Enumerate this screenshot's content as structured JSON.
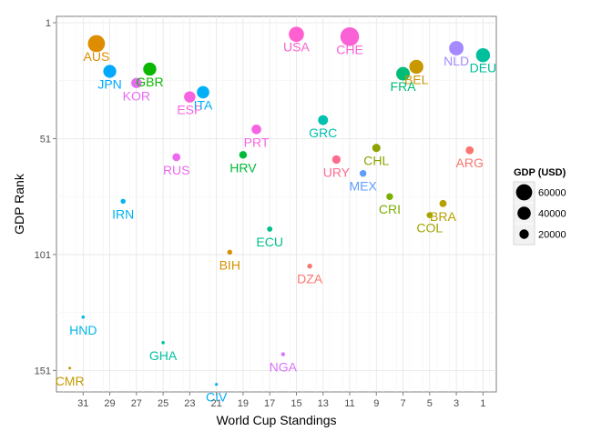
{
  "chart_data": {
    "type": "scatter",
    "xlabel": "World Cup Standings",
    "ylabel": "GDP Rank",
    "x_reversed": true,
    "y_reversed": true,
    "xlim": [
      33,
      0
    ],
    "ylim": [
      1,
      163
    ],
    "x_ticks": [
      31,
      29,
      27,
      25,
      23,
      21,
      19,
      17,
      15,
      13,
      11,
      9,
      7,
      5,
      3,
      1
    ],
    "y_ticks": [
      1,
      51,
      101,
      151
    ],
    "grid": true,
    "legend_position": "right",
    "legend": {
      "title": "GDP (USD)",
      "entries": [
        {
          "label": "60000",
          "value": 60000
        },
        {
          "label": "40000",
          "value": 40000
        },
        {
          "label": "20000",
          "value": 20000
        }
      ]
    },
    "points": [
      {
        "label": "AUS",
        "x": 30.0,
        "y": 10,
        "gdp": 67000,
        "color": "#de8c00"
      },
      {
        "label": "USA",
        "x": 15.0,
        "y": 6,
        "gdp": 53000,
        "color": "#fe61cf"
      },
      {
        "label": "CHE",
        "x": 11.0,
        "y": 7,
        "gdp": 81000,
        "color": "#fb61d7"
      },
      {
        "label": "NLD",
        "x": 3.0,
        "y": 12,
        "gdp": 48000,
        "color": "#a58aff"
      },
      {
        "label": "DEU",
        "x": 1.0,
        "y": 15,
        "gdp": 45000,
        "color": "#00bf9c"
      },
      {
        "label": "BEL",
        "x": 6.0,
        "y": 20,
        "gdp": 45000,
        "color": "#c99800"
      },
      {
        "label": "FRA",
        "x": 7.0,
        "y": 23,
        "gdp": 42000,
        "color": "#00bc76"
      },
      {
        "label": "JPN",
        "x": 29.0,
        "y": 22,
        "gdp": 38000,
        "color": "#00a9ff"
      },
      {
        "label": "GBR",
        "x": 26.0,
        "y": 21,
        "gdp": 39000,
        "color": "#0cb702"
      },
      {
        "label": "KOR",
        "x": 27.0,
        "y": 27,
        "gdp": 24000,
        "color": "#e76bf3"
      },
      {
        "label": "ESP",
        "x": 23.0,
        "y": 33,
        "gdp": 29000,
        "color": "#f863df"
      },
      {
        "label": "ITA",
        "x": 22.0,
        "y": 31,
        "gdp": 35000,
        "color": "#00b0f6"
      },
      {
        "label": "GRC",
        "x": 13.0,
        "y": 43,
        "gdp": 22000,
        "color": "#00c0af"
      },
      {
        "label": "PRT",
        "x": 18.0,
        "y": 47,
        "gdp": 21000,
        "color": "#f565e3"
      },
      {
        "label": "CHL",
        "x": 9.0,
        "y": 55,
        "gdp": 15000,
        "color": "#8ea300"
      },
      {
        "label": "ARG",
        "x": 2.0,
        "y": 56,
        "gdp": 14000,
        "color": "#f8766d"
      },
      {
        "label": "HRV",
        "x": 19.0,
        "y": 58,
        "gdp": 13000,
        "color": "#00ba38"
      },
      {
        "label": "RUS",
        "x": 24.0,
        "y": 59,
        "gdp": 14000,
        "color": "#ec69ef"
      },
      {
        "label": "URY",
        "x": 12.0,
        "y": 60,
        "gdp": 16000,
        "color": "#ff6c91"
      },
      {
        "label": "MEX",
        "x": 10.0,
        "y": 66,
        "gdp": 10000,
        "color": "#619cff"
      },
      {
        "label": "CRI",
        "x": 8.0,
        "y": 76,
        "gdp": 10000,
        "color": "#7cae00"
      },
      {
        "label": "BRA",
        "x": 4.0,
        "y": 79,
        "gdp": 11000,
        "color": "#b79f00"
      },
      {
        "label": "COL",
        "x": 5.0,
        "y": 84,
        "gdp": 8000,
        "color": "#a3a500"
      },
      {
        "label": "IRN",
        "x": 28.0,
        "y": 78,
        "gdp": 5000,
        "color": "#00b4ef"
      },
      {
        "label": "ECU",
        "x": 17.0,
        "y": 90,
        "gdp": 6000,
        "color": "#00c08b"
      },
      {
        "label": "BIH",
        "x": 20.0,
        "y": 100,
        "gdp": 5000,
        "color": "#d89000"
      },
      {
        "label": "DZA",
        "x": 14.0,
        "y": 106,
        "gdp": 5000,
        "color": "#f8766d"
      },
      {
        "label": "HND",
        "x": 31.0,
        "y": 128,
        "gdp": 2000,
        "color": "#00b8e7"
      },
      {
        "label": "GHA",
        "x": 25.0,
        "y": 139,
        "gdp": 2000,
        "color": "#00c1a3"
      },
      {
        "label": "NGA",
        "x": 16.0,
        "y": 144,
        "gdp": 3000,
        "color": "#db72fb"
      },
      {
        "label": "CMR",
        "x": 32.0,
        "y": 150,
        "gdp": 1300,
        "color": "#c49a00"
      },
      {
        "label": "CIV",
        "x": 21.0,
        "y": 157,
        "gdp": 1500,
        "color": "#00aef9"
      }
    ]
  }
}
